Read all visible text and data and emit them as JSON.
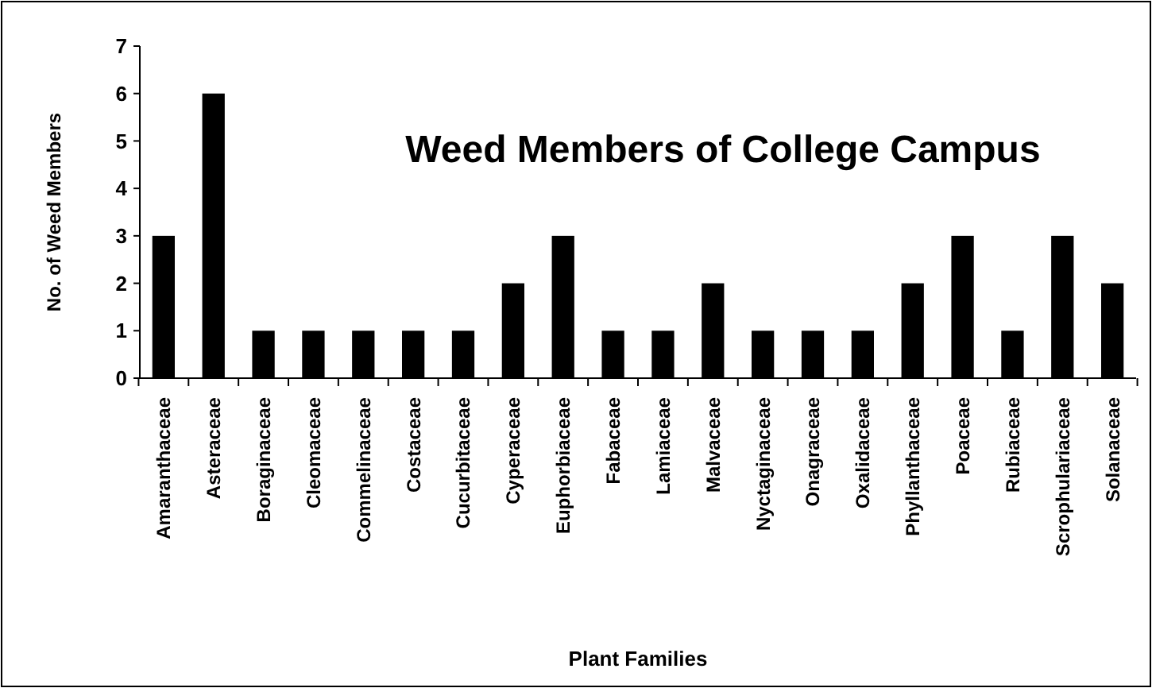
{
  "chart_data": {
    "type": "bar",
    "title": "Weed Members of College Campus",
    "xlabel": "Plant Families",
    "ylabel": "No. of Weed Members",
    "categories": [
      "Amaranthaceae",
      "Asteraceae",
      "Boraginaceae",
      "Cleomaceae",
      "Commelinaceae",
      "Costaceae",
      "Cucurbitaceae",
      "Cyperaceae",
      "Euphorbiaceae",
      "Fabaceae",
      "Lamiaceae",
      "Malvaceae",
      "Nyctaginaceae",
      "Onagraceae",
      "Oxalidaceae",
      "Phyllanthaceae",
      "Poaceae",
      "Rubiaceae",
      "Scrophulariaceae",
      "Solanaceae"
    ],
    "values": [
      3,
      6,
      1,
      1,
      1,
      1,
      1,
      2,
      3,
      1,
      1,
      2,
      1,
      1,
      1,
      2,
      3,
      1,
      3,
      2
    ],
    "color": "#000000",
    "ylim": [
      0,
      7
    ],
    "yticks": [
      0,
      1,
      2,
      3,
      4,
      5,
      6,
      7
    ],
    "grid": false
  }
}
